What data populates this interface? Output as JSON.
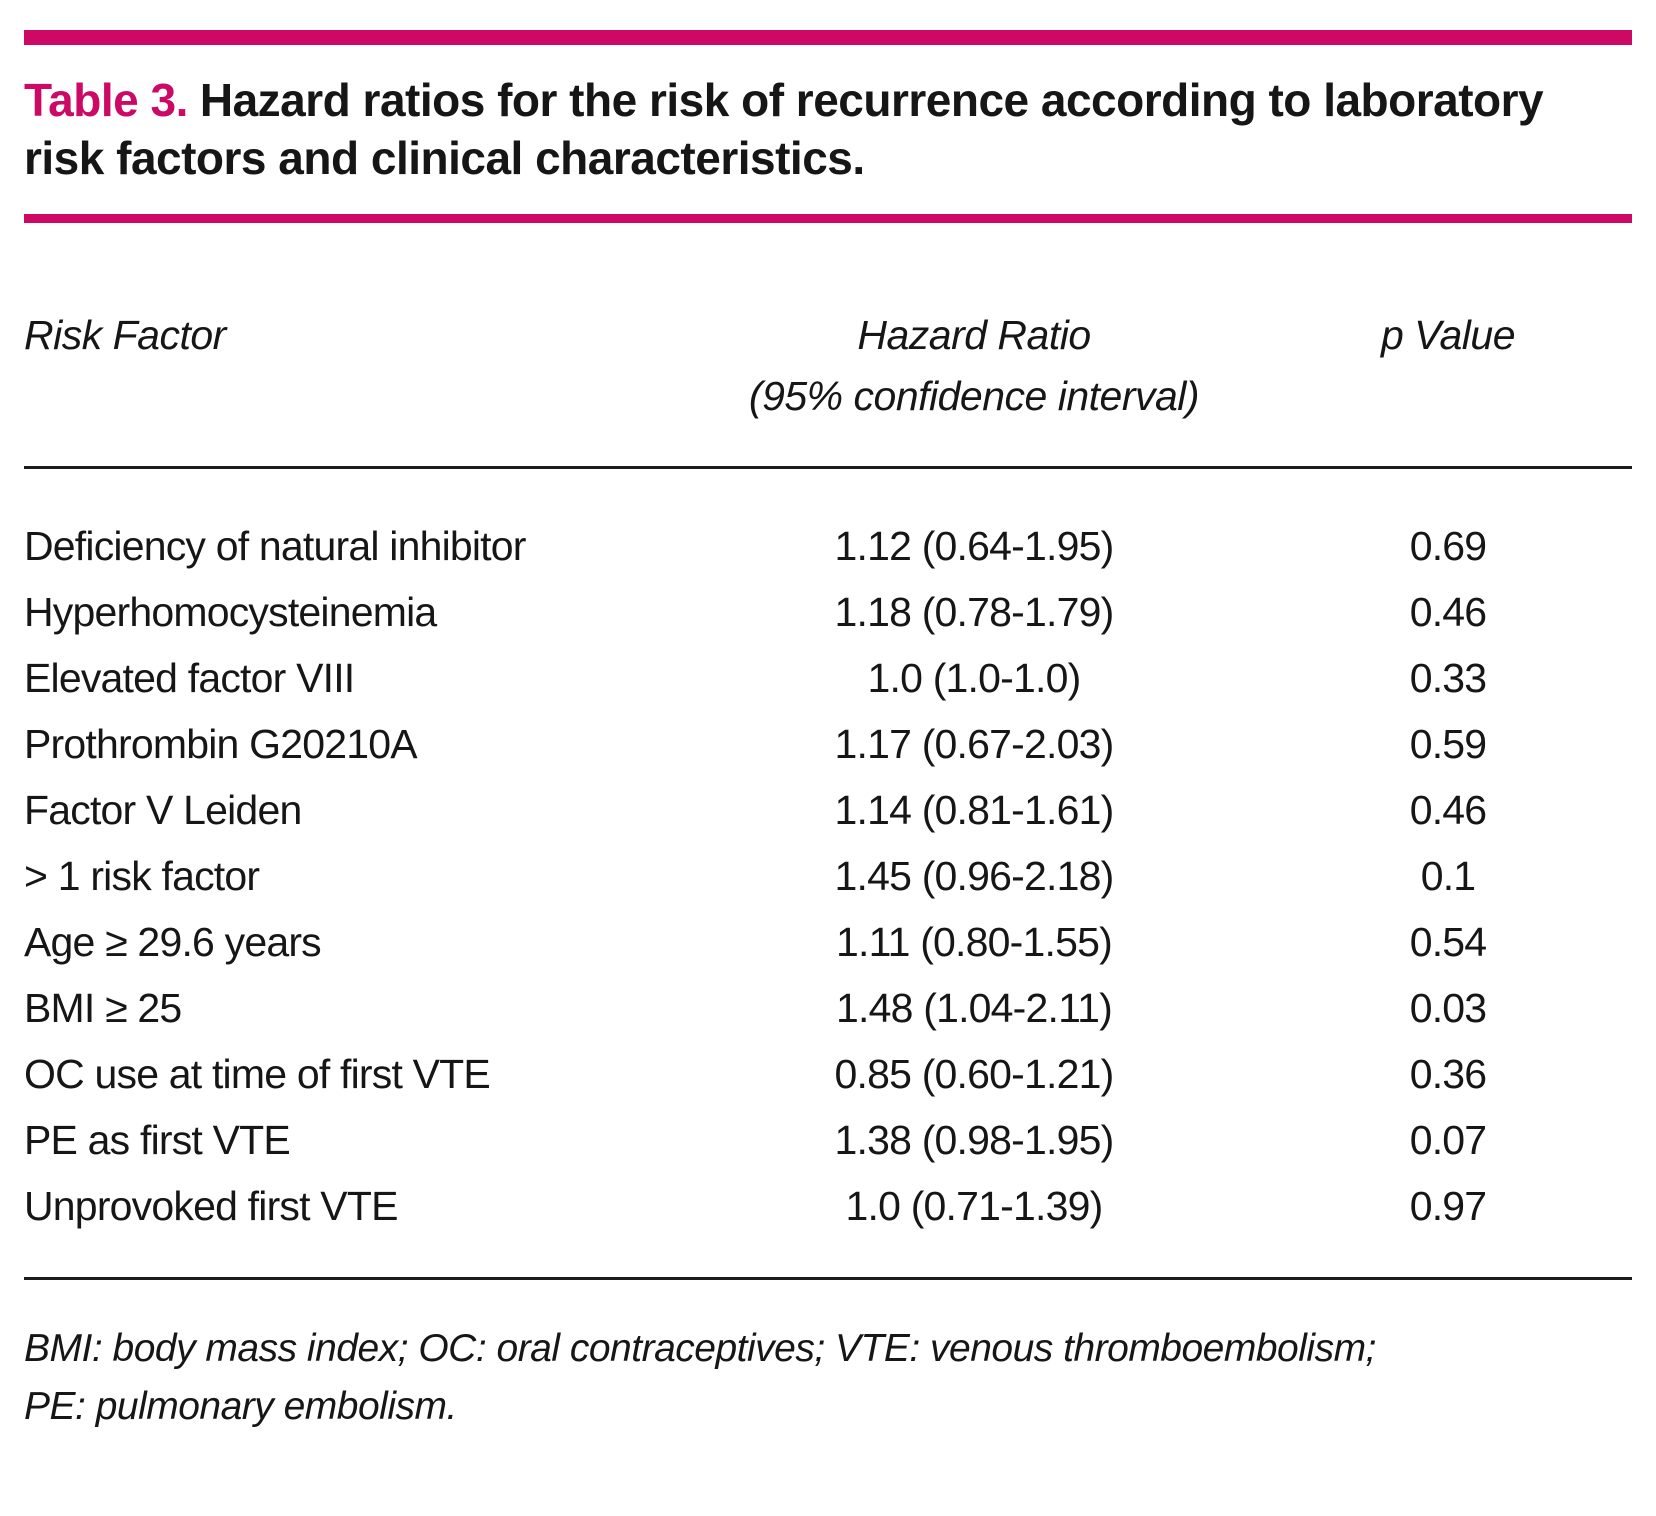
{
  "accent_color": "#cc0a66",
  "title": {
    "label": "Table 3.",
    "text": "Hazard ratios for the risk of recurrence according to laboratory risk factors and clinical characteristics."
  },
  "table": {
    "headers": {
      "risk_factor": "Risk Factor",
      "hazard_ratio_line1": "Hazard Ratio",
      "hazard_ratio_line2": "(95% confidence interval)",
      "p_value": "p Value"
    },
    "rows": [
      {
        "risk_factor": "Deficiency of natural inhibitor",
        "hazard_ratio": "1.12 (0.64-1.95)",
        "p_value": "0.69"
      },
      {
        "risk_factor": "Hyperhomocysteinemia",
        "hazard_ratio": "1.18 (0.78-1.79)",
        "p_value": "0.46"
      },
      {
        "risk_factor": "Elevated factor VIII",
        "hazard_ratio": "1.0 (1.0-1.0)",
        "p_value": "0.33"
      },
      {
        "risk_factor": "Prothrombin G20210A",
        "hazard_ratio": "1.17 (0.67-2.03)",
        "p_value": "0.59"
      },
      {
        "risk_factor": "Factor V Leiden",
        "hazard_ratio": "1.14 (0.81-1.61)",
        "p_value": "0.46"
      },
      {
        "risk_factor": "> 1 risk factor",
        "hazard_ratio": "1.45 (0.96-2.18)",
        "p_value": "0.1"
      },
      {
        "risk_factor": "Age ≥ 29.6 years",
        "hazard_ratio": "1.11 (0.80-1.55)",
        "p_value": "0.54"
      },
      {
        "risk_factor": "BMI ≥ 25",
        "hazard_ratio": "1.48 (1.04-2.11)",
        "p_value": "0.03"
      },
      {
        "risk_factor": "OC use at time of first VTE",
        "hazard_ratio": "0.85 (0.60-1.21)",
        "p_value": "0.36"
      },
      {
        "risk_factor": "PE as first VTE",
        "hazard_ratio": "1.38 (0.98-1.95)",
        "p_value": "0.07"
      },
      {
        "risk_factor": "Unprovoked first VTE",
        "hazard_ratio": "1.0 (0.71-1.39)",
        "p_value": "0.97"
      }
    ]
  },
  "footnote": {
    "line1": "BMI: body mass index; OC: oral contraceptives; VTE: venous thromboembolism;",
    "line2": "PE: pulmonary embolism."
  }
}
